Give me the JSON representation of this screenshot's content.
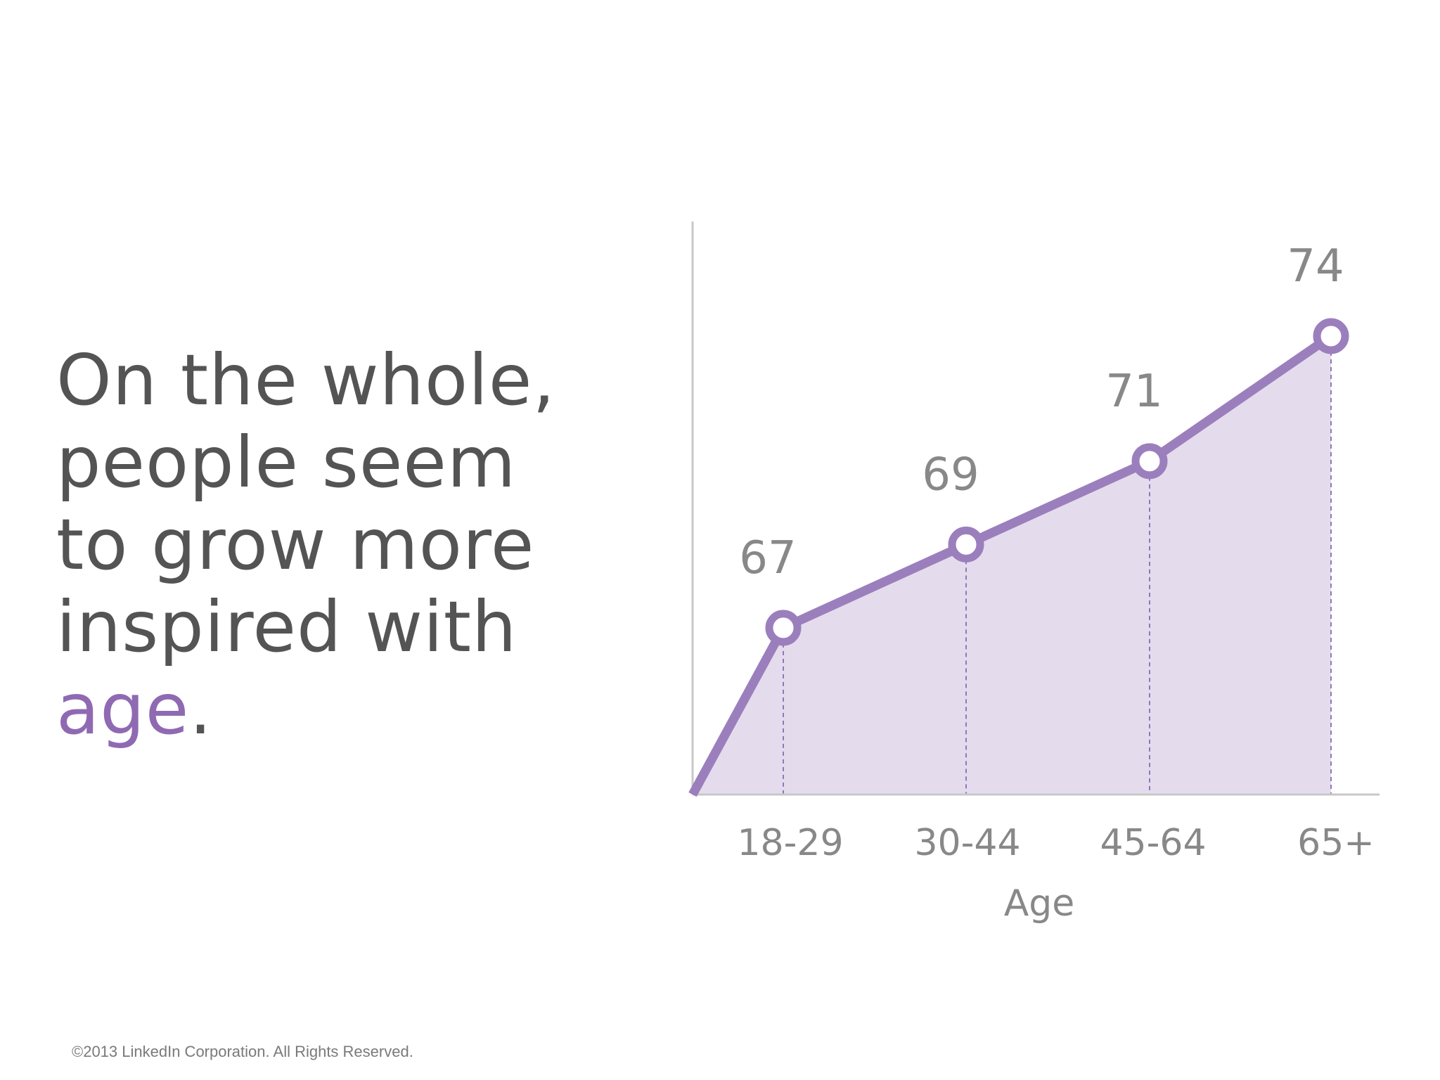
{
  "headline": {
    "lines": [
      "On the whole,",
      "people seem",
      "to grow more",
      "inspired with"
    ],
    "accent": "age",
    "ending": "."
  },
  "footer": {
    "copyright": "©2013 LinkedIn Corporation. All Rights Reserved."
  },
  "colors": {
    "accent": "#9b7fbd",
    "area_fill": "#e4dcec",
    "text_dark": "#545454",
    "text_muted": "#888888"
  },
  "chart_data": {
    "type": "area",
    "categories": [
      "18-29",
      "30-44",
      "45-64",
      "65+"
    ],
    "values": [
      67,
      69,
      71,
      74
    ],
    "title": "",
    "xlabel": "Age",
    "ylabel": "",
    "ylim": [
      63,
      74
    ],
    "grid": false,
    "legend": "none"
  }
}
